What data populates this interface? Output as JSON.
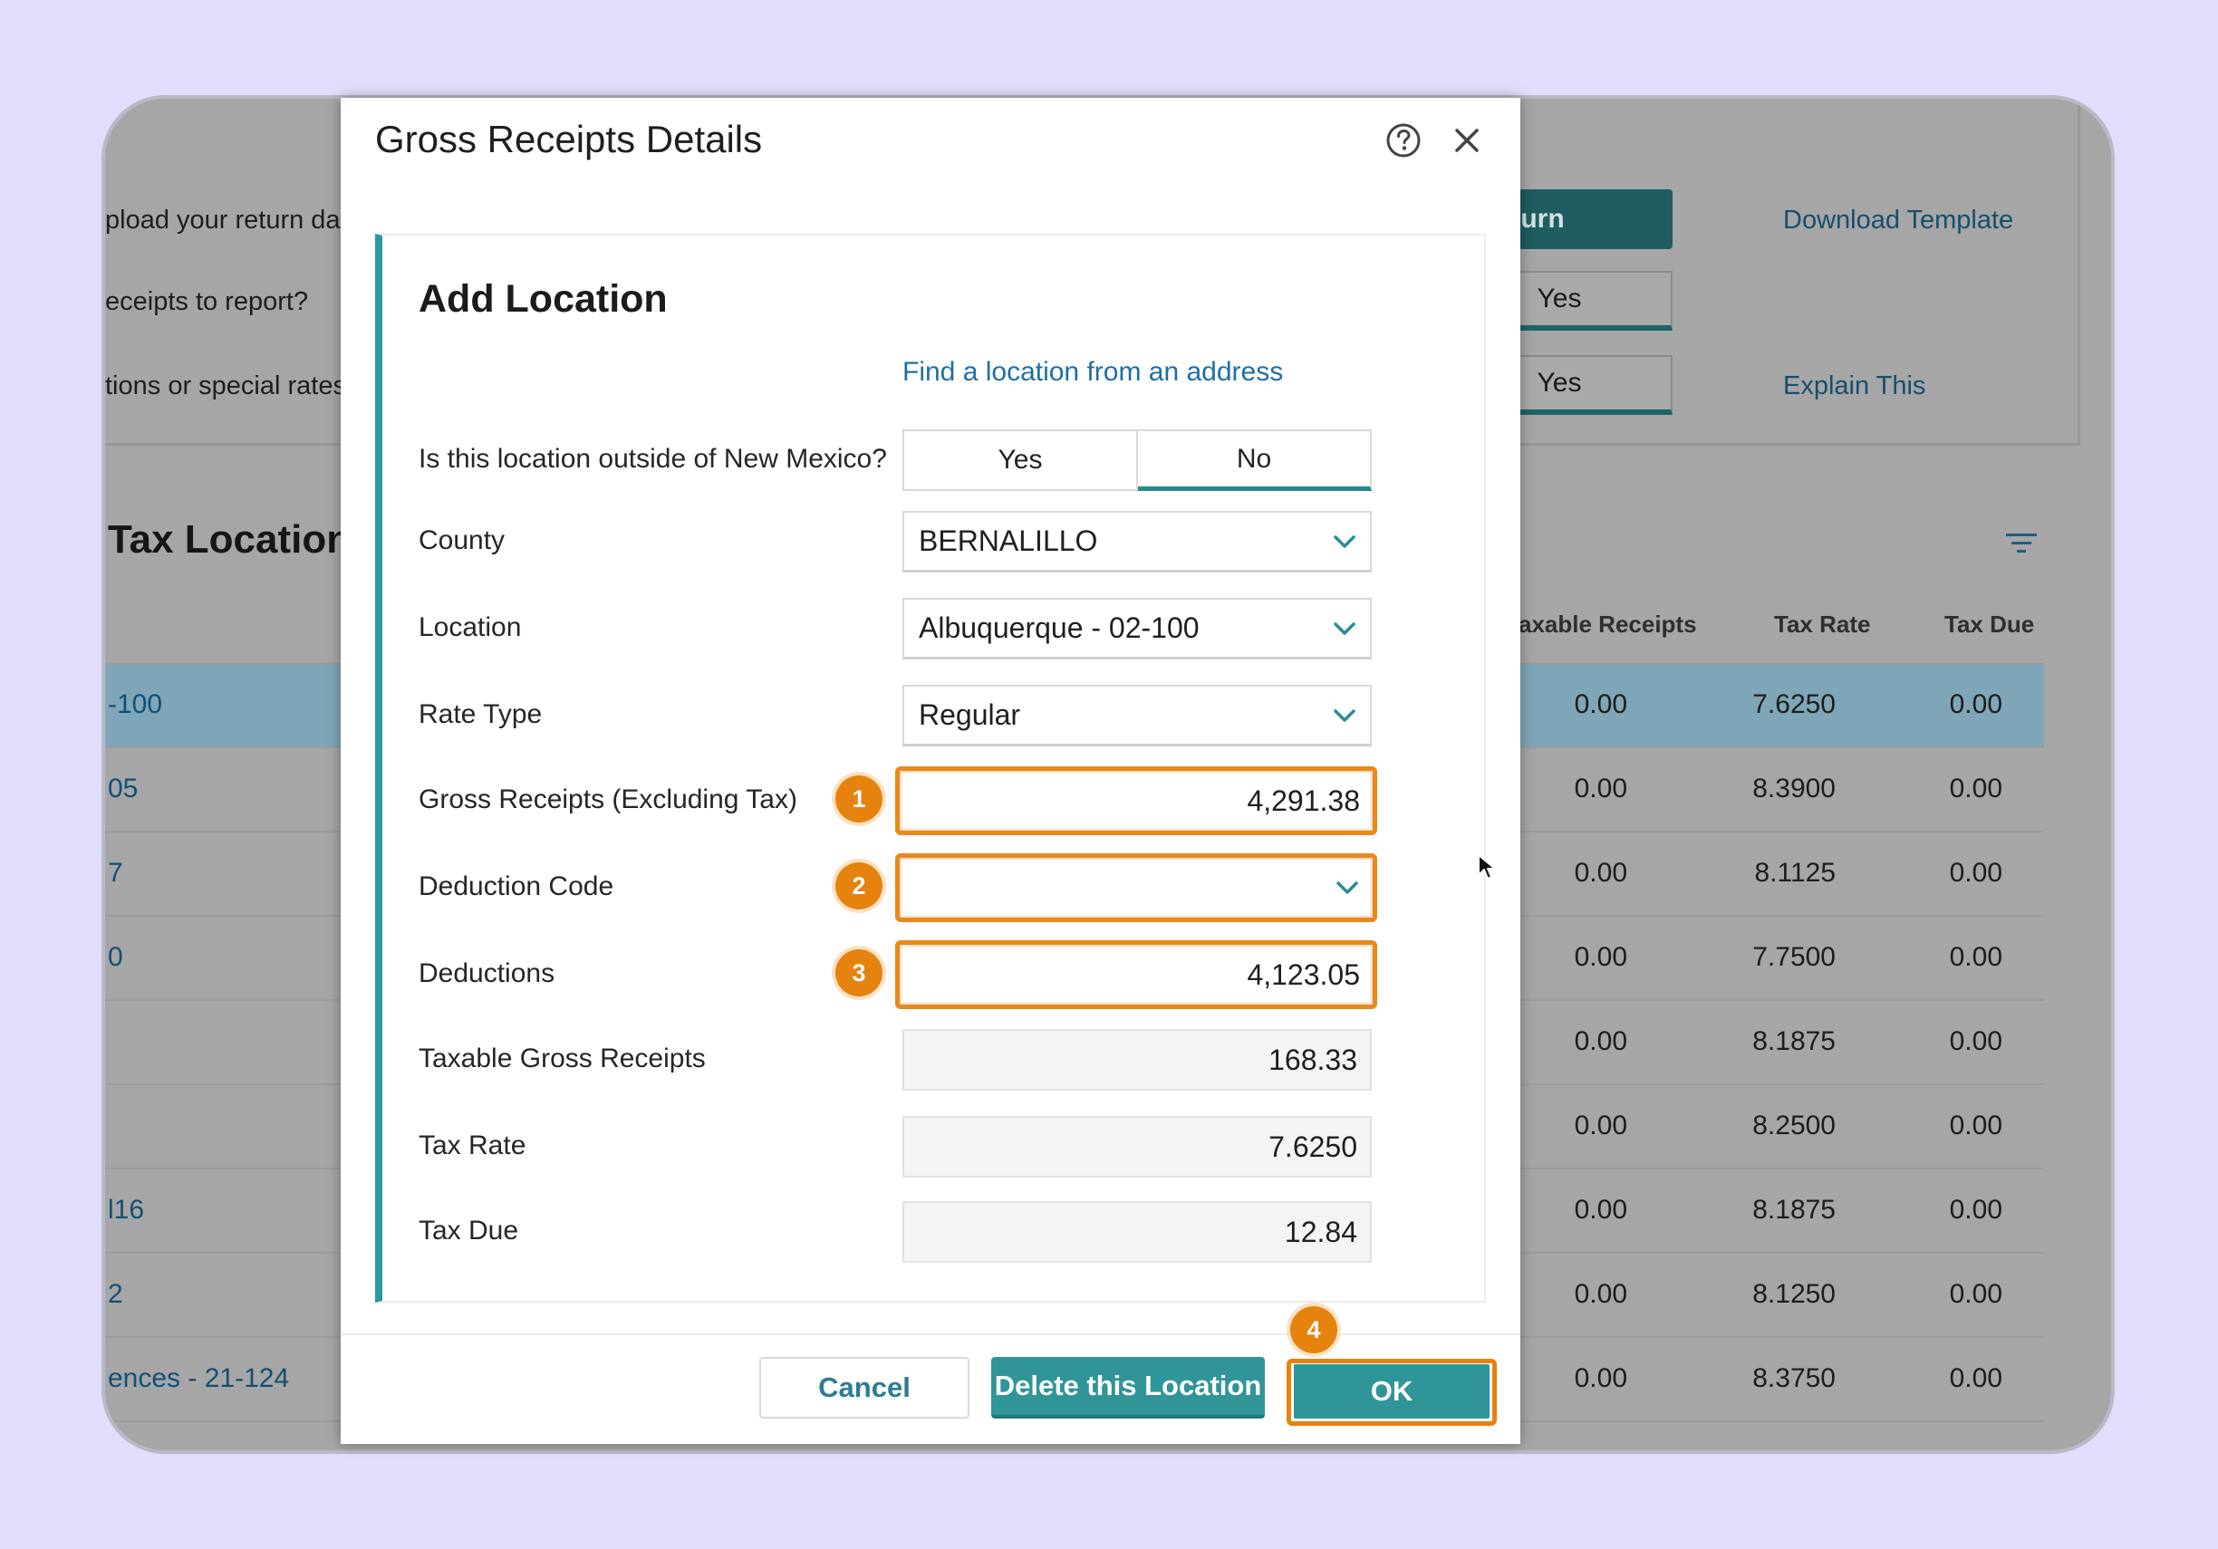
{
  "background": {
    "prompts": [
      "pload your return dat",
      "eceipts to report?",
      "tions or special rates"
    ],
    "return_button": "Return",
    "download_template": "Download Template",
    "toggle_1": "Yes",
    "toggle_2": "Yes",
    "explain_this": "Explain This",
    "section_title": "Tax Locations",
    "columns": [
      "axable Receipts",
      "Tax Rate",
      "Tax Due"
    ],
    "rows": [
      {
        "name": "-100",
        "taxable": "0.00",
        "rate": "7.6250",
        "due": "0.00"
      },
      {
        "name": "05",
        "taxable": "0.00",
        "rate": "8.3900",
        "due": "0.00"
      },
      {
        "name": "7",
        "taxable": "0.00",
        "rate": "8.1125",
        "due": "0.00"
      },
      {
        "name": "0",
        "taxable": "0.00",
        "rate": "7.7500",
        "due": "0.00"
      },
      {
        "name": "",
        "taxable": "0.00",
        "rate": "8.1875",
        "due": "0.00"
      },
      {
        "name": "",
        "taxable": "0.00",
        "rate": "8.2500",
        "due": "0.00"
      },
      {
        "name": "l16",
        "taxable": "0.00",
        "rate": "8.1875",
        "due": "0.00"
      },
      {
        "name": "2",
        "taxable": "0.00",
        "rate": "8.1250",
        "due": "0.00"
      },
      {
        "name": "ences - 21-124",
        "taxable": "0.00",
        "rate": "8.3750",
        "due": "0.00"
      }
    ]
  },
  "modal": {
    "title": "Gross Receipts Details",
    "help_icon": "question-circle-icon",
    "close_icon": "close-icon",
    "card_title": "Add Location",
    "find_link": "Find a location from an address",
    "outside_label": "Is this location outside of New Mexico?",
    "outside_yes": "Yes",
    "outside_no": "No",
    "outside_selected": "No",
    "county_label": "County",
    "county_value": "BERNALILLO",
    "location_label": "Location",
    "location_value": "Albuquerque - 02-100",
    "rate_type_label": "Rate Type",
    "rate_type_value": "Regular",
    "gross_label": "Gross Receipts (Excluding Tax)",
    "gross_value": "4,291.38",
    "deduction_code_label": "Deduction Code",
    "deduction_code_value": "",
    "deductions_label": "Deductions",
    "deductions_value": "4,123.05",
    "taxable_label": "Taxable Gross Receipts",
    "taxable_value": "168.33",
    "tax_rate_label": "Tax Rate",
    "tax_rate_value": "7.6250",
    "tax_due_label": "Tax Due",
    "tax_due_value": "12.84",
    "cancel": "Cancel",
    "delete": "Delete this Location",
    "ok": "OK"
  },
  "step_badges": [
    "1",
    "2",
    "3",
    "4"
  ],
  "colors": {
    "teal_accent": "#2f9599",
    "highlight_orange": "#e6820e",
    "link_blue": "#1f6fa4",
    "page_background": "#e1ddfc"
  }
}
